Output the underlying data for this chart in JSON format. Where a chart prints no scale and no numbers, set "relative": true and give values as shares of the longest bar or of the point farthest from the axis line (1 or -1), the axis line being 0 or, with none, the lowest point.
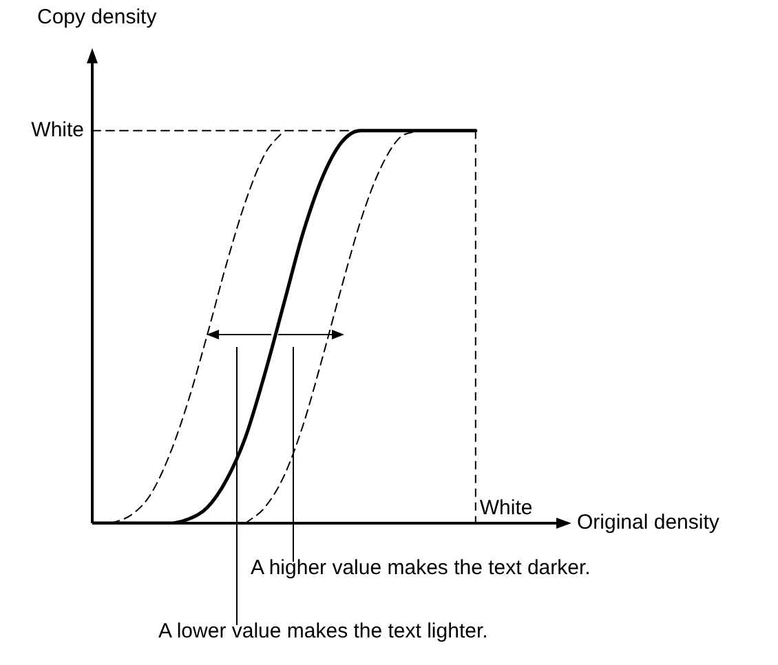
{
  "chart_data": {
    "type": "line",
    "relative": true,
    "xlabel": "Original density",
    "ylabel": "Copy density",
    "legend": false,
    "marker": "none",
    "categories": [
      null,
      null,
      null,
      null,
      null,
      null,
      null,
      null,
      null,
      null,
      null,
      null,
      null,
      null,
      null,
      null,
      null,
      null,
      null,
      null,
      null,
      null,
      null,
      null,
      null,
      null
    ],
    "series": [
      {
        "name": "White",
        "color": "#000000",
        "line_style": "dashed",
        "values": [
          1,
          1,
          1,
          1,
          1,
          1,
          1,
          1,
          1,
          1,
          1,
          1,
          1,
          1,
          1,
          1,
          1,
          1,
          1,
          1,
          1,
          null,
          null,
          null,
          null,
          null
        ]
      },
      {
        "color": "#000000",
        "line_style": "dashed",
        "values": [
          null,
          0,
          0.02,
          0.07,
          0.17,
          0.31,
          0.48,
          0.66,
          0.82,
          0.94,
          1,
          null,
          null,
          null,
          null,
          null,
          null,
          null,
          null,
          null,
          null,
          null,
          null,
          null,
          null,
          null
        ]
      },
      {
        "color": "#000000",
        "line_style": "dashed",
        "values": [
          null,
          null,
          null,
          null,
          null,
          null,
          null,
          null,
          0,
          0.04,
          0.12,
          0.25,
          0.42,
          0.6,
          0.77,
          0.9,
          0.98,
          1,
          null,
          null,
          null,
          null,
          null,
          null,
          null,
          null
        ]
      },
      {
        "color": "#000000",
        "line_style": "solid",
        "values": [
          0,
          0,
          0,
          0,
          0,
          0.01,
          0.04,
          0.11,
          0.22,
          0.38,
          0.56,
          0.74,
          0.88,
          0.97,
          1,
          1,
          1,
          1,
          1,
          1,
          1,
          null,
          null,
          null,
          null,
          null
        ]
      }
    ],
    "annotations": [
      "White",
      "A higher value makes the text darker.",
      "A lower value makes the text lighter."
    ]
  }
}
